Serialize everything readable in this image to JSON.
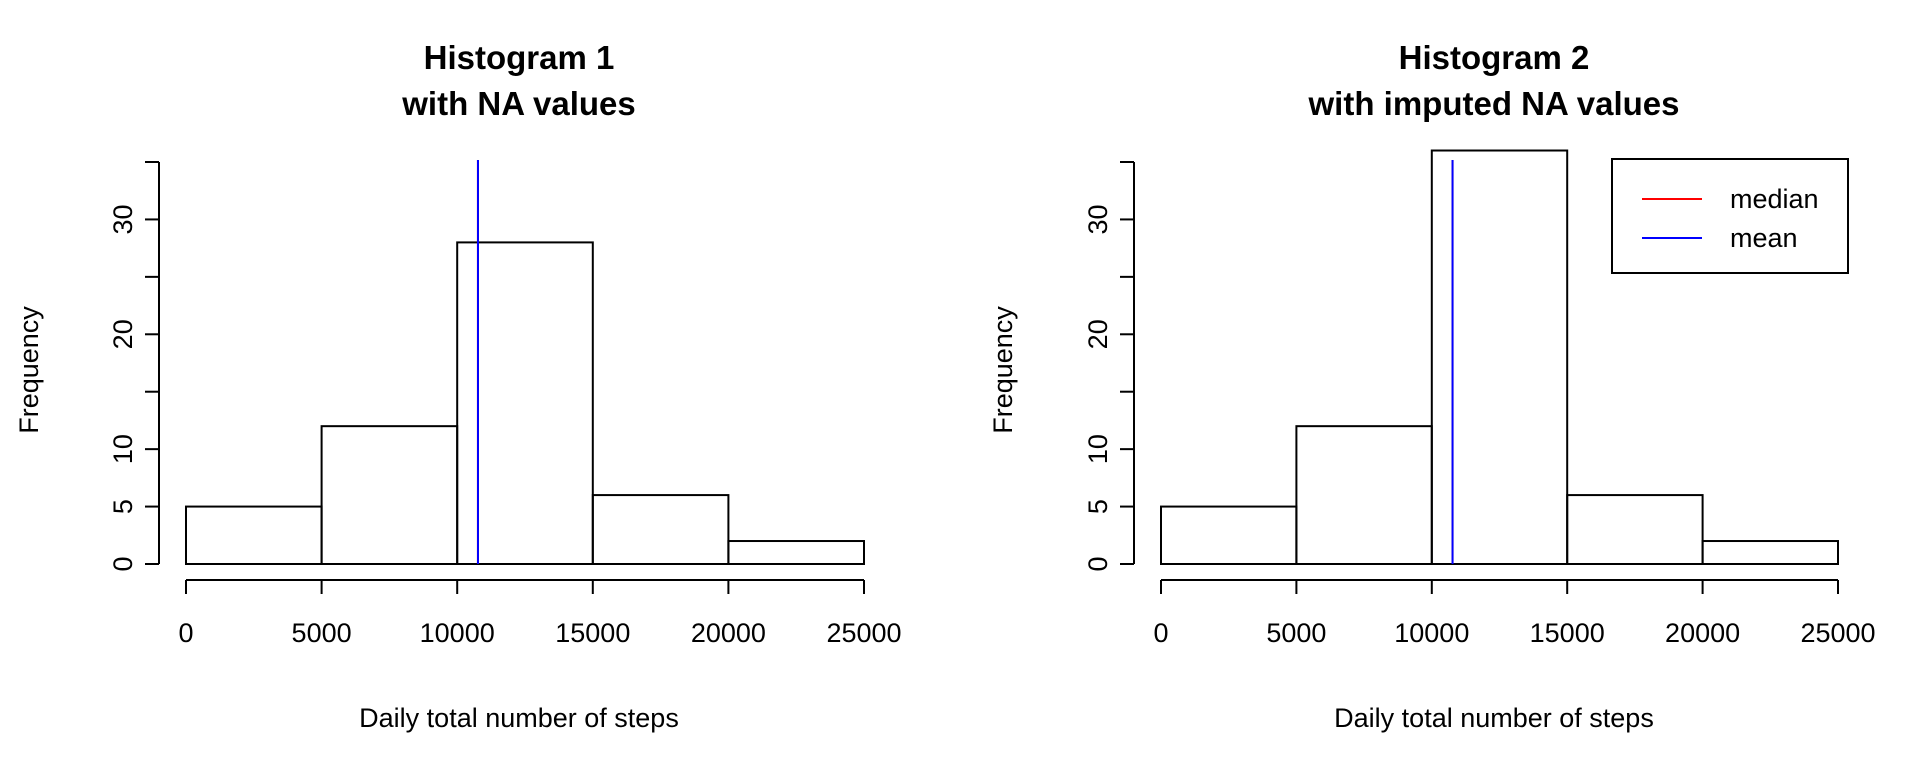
{
  "chart_data": [
    {
      "type": "bar",
      "title_lines": [
        "Histogram 1",
        "with NA values"
      ],
      "xlabel": "Daily total number of steps",
      "ylabel": "Frequency",
      "bin_edges": [
        0,
        5000,
        10000,
        15000,
        20000,
        25000
      ],
      "values": [
        5,
        12,
        28,
        6,
        2
      ],
      "xlim": [
        0,
        25000
      ],
      "ylim": [
        0,
        35
      ],
      "x_ticks": [
        0,
        5000,
        10000,
        15000,
        20000,
        25000
      ],
      "y_ticks": [
        0,
        5,
        10,
        15,
        20,
        25,
        30,
        35
      ],
      "y_tick_labels": [
        "0",
        "5",
        "10",
        "",
        "20",
        "",
        "30",
        ""
      ],
      "vlines": [
        {
          "name": "median",
          "x": 10765,
          "color": "#ff0000"
        },
        {
          "name": "mean",
          "x": 10766,
          "color": "#0000ff"
        }
      ],
      "legend": null
    },
    {
      "type": "bar",
      "title_lines": [
        "Histogram 2",
        "with imputed NA values"
      ],
      "xlabel": "Daily total number of steps",
      "ylabel": "Frequency",
      "bin_edges": [
        0,
        5000,
        10000,
        15000,
        20000,
        25000
      ],
      "values": [
        5,
        12,
        36,
        6,
        2
      ],
      "xlim": [
        0,
        25000
      ],
      "ylim": [
        0,
        35
      ],
      "x_ticks": [
        0,
        5000,
        10000,
        15000,
        20000,
        25000
      ],
      "y_ticks": [
        0,
        5,
        10,
        15,
        20,
        25,
        30,
        35
      ],
      "y_tick_labels": [
        "0",
        "5",
        "10",
        "",
        "20",
        "",
        "30",
        ""
      ],
      "vlines": [
        {
          "name": "median",
          "x": 10766,
          "color": "#ff0000"
        },
        {
          "name": "mean",
          "x": 10766,
          "color": "#0000ff"
        }
      ],
      "legend": {
        "position": "top-right",
        "entries": [
          {
            "label": "median",
            "color": "#ff0000"
          },
          {
            "label": "mean",
            "color": "#0000ff"
          }
        ]
      }
    }
  ]
}
